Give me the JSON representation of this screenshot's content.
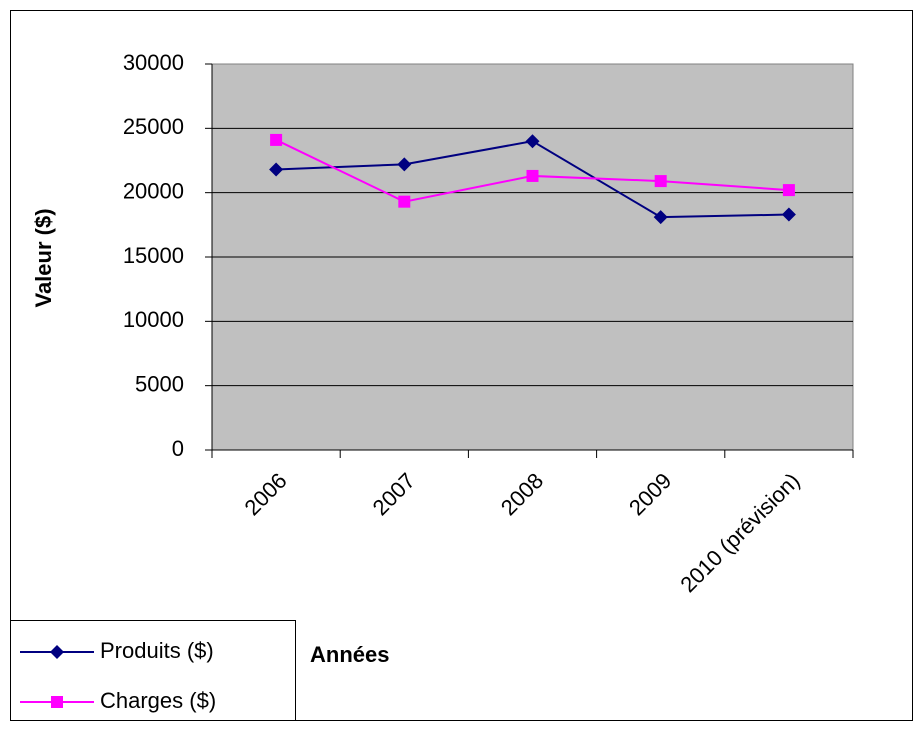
{
  "chart_data": {
    "type": "line",
    "categories": [
      "2006",
      "2007",
      "2008",
      "2009",
      "2010 (prévision)"
    ],
    "series": [
      {
        "name": "Produits ($)",
        "color": "#000080",
        "marker": "diamond",
        "values": [
          21800,
          22200,
          24000,
          18100,
          18300
        ]
      },
      {
        "name": "Charges ($)",
        "color": "#ff00ff",
        "marker": "square",
        "values": [
          24100,
          19300,
          21300,
          20900,
          20200
        ]
      }
    ],
    "ylabel": "Valeur ($)",
    "xlabel": "Années",
    "ylim": [
      0,
      30000
    ],
    "yticks": [
      0,
      5000,
      10000,
      15000,
      20000,
      25000,
      30000
    ],
    "grid": true,
    "legend": "bottom-left"
  }
}
